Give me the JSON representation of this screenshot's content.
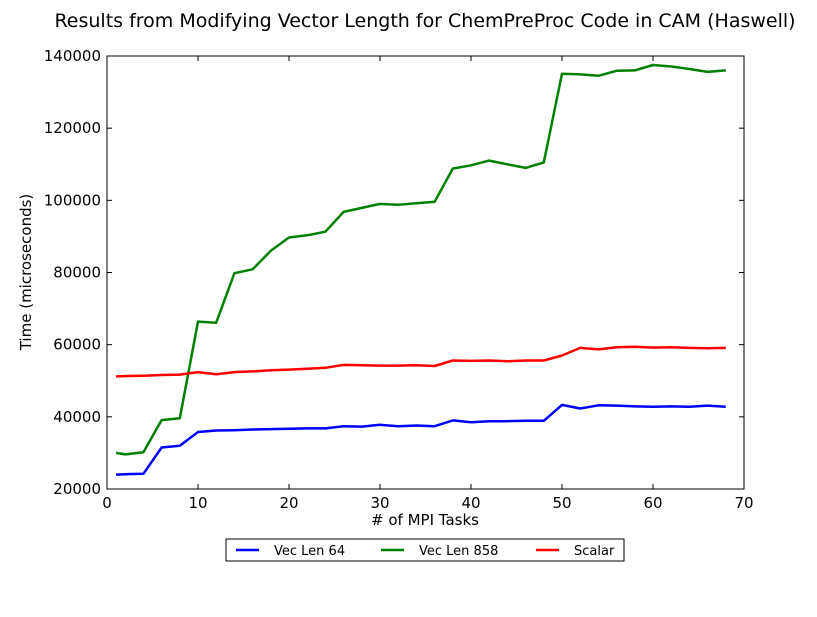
{
  "chart_data": {
    "type": "line",
    "title": "Results from Modifying Vector Length for ChemPreProc Code in CAM (Haswell)",
    "xlabel": "# of MPI Tasks",
    "ylabel": "Time (microseconds)",
    "xlim": [
      0,
      70
    ],
    "ylim": [
      20000,
      140000
    ],
    "xticks": [
      0,
      10,
      20,
      30,
      40,
      50,
      60,
      70
    ],
    "yticks": [
      20000,
      40000,
      60000,
      80000,
      100000,
      120000,
      140000
    ],
    "grid": false,
    "legend_position": "bottom-center",
    "x": [
      1,
      2,
      4,
      6,
      8,
      10,
      12,
      14,
      16,
      18,
      20,
      22,
      24,
      26,
      28,
      30,
      32,
      34,
      36,
      38,
      40,
      42,
      44,
      46,
      48,
      50,
      52,
      54,
      56,
      58,
      60,
      62,
      64,
      66,
      68
    ],
    "series": [
      {
        "name": "Vec Len 64",
        "color": "#0000ff",
        "values": [
          24000,
          24100,
          24200,
          31500,
          32000,
          35800,
          36200,
          36300,
          36500,
          36600,
          36700,
          36800,
          36800,
          37400,
          37300,
          37800,
          37400,
          37600,
          37400,
          39000,
          38500,
          38800,
          38800,
          38900,
          38900,
          43300,
          42300,
          43200,
          43100,
          42900,
          42800,
          42900,
          42800,
          43100,
          42800
        ]
      },
      {
        "name": "Vec Len 858",
        "color": "#008000",
        "values": [
          30000,
          29600,
          30200,
          39100,
          39600,
          66400,
          66100,
          79800,
          80900,
          86000,
          89700,
          90300,
          91300,
          96800,
          97900,
          99000,
          98800,
          99200,
          99600,
          108800,
          109700,
          111000,
          110000,
          109000,
          110500,
          135100,
          134900,
          134500,
          135900,
          136000,
          137500,
          137100,
          136400,
          135600,
          136000
        ]
      },
      {
        "name": "Scalar",
        "color": "#ff0000",
        "values": [
          51200,
          51300,
          51400,
          51600,
          51700,
          52400,
          51800,
          52400,
          52600,
          52900,
          53100,
          53300,
          53600,
          54400,
          54300,
          54200,
          54200,
          54300,
          54100,
          55600,
          55500,
          55600,
          55400,
          55600,
          55600,
          57000,
          59100,
          58700,
          59300,
          59400,
          59200,
          59300,
          59100,
          59000,
          59100
        ]
      }
    ]
  }
}
